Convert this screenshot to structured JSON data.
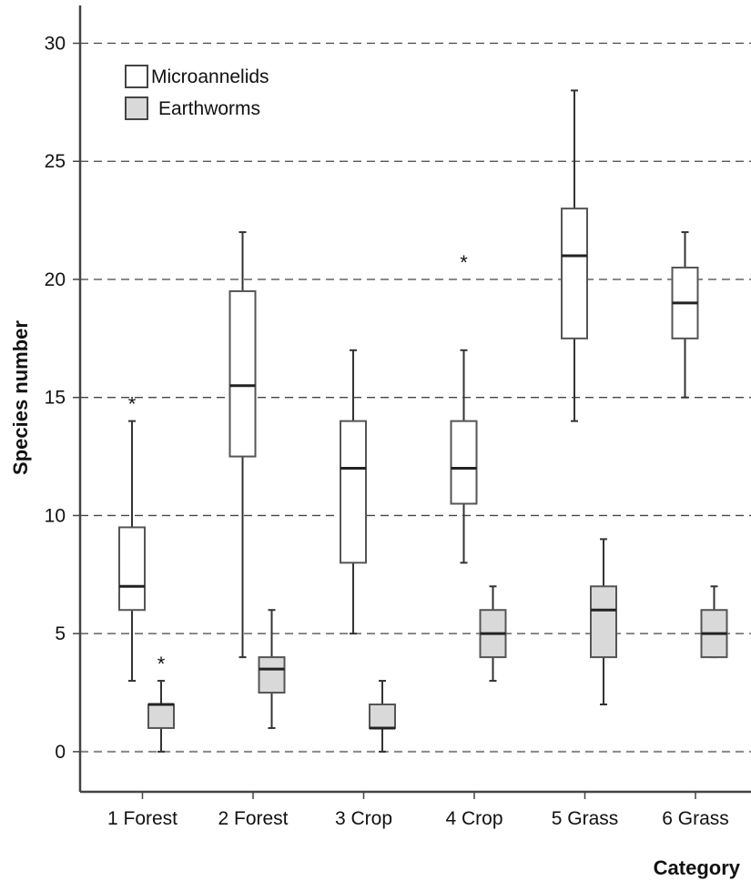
{
  "chart_data": {
    "type": "boxplot",
    "xlabel": "Category",
    "ylabel": "Species number",
    "ylim": [
      -1.7,
      31.6
    ],
    "yticks": [
      0,
      5,
      10,
      15,
      20,
      25,
      30
    ],
    "grid": "horizontal-dashed",
    "legend_position": "top-left",
    "categories": [
      "1 Forest",
      "2 Forest",
      "3 Crop",
      "4 Crop",
      "5 Grass",
      "6 Grass"
    ],
    "series": [
      {
        "name": "Microannelids",
        "fill": "#ffffff",
        "boxes": [
          {
            "min": 3,
            "q1": 6,
            "median": 7,
            "q3": 9.5,
            "max": 14,
            "outliers": [
              15
            ]
          },
          {
            "min": 4,
            "q1": 12.5,
            "median": 15.5,
            "q3": 19.5,
            "max": 22,
            "outliers": []
          },
          {
            "min": 5,
            "q1": 8,
            "median": 12,
            "q3": 14,
            "max": 17,
            "outliers": []
          },
          {
            "min": 8,
            "q1": 10.5,
            "median": 12,
            "q3": 14,
            "max": 17,
            "outliers": [
              21
            ]
          },
          {
            "min": 14,
            "q1": 17.5,
            "median": 21,
            "q3": 23,
            "max": 28,
            "outliers": []
          },
          {
            "min": 15,
            "q1": 17.5,
            "median": 19,
            "q3": 20.5,
            "max": 22,
            "outliers": []
          }
        ]
      },
      {
        "name": "Earthworms",
        "fill": "#d9d9d9",
        "boxes": [
          {
            "min": 0,
            "q1": 1,
            "median": 2,
            "q3": 2,
            "max": 3,
            "outliers": [
              4
            ]
          },
          {
            "min": 1,
            "q1": 2.5,
            "median": 3.5,
            "q3": 4,
            "max": 6,
            "outliers": []
          },
          {
            "min": 0,
            "q1": 1,
            "median": 1,
            "q3": 2,
            "max": 3,
            "outliers": []
          },
          {
            "min": 3,
            "q1": 4,
            "median": 5,
            "q3": 6,
            "max": 7,
            "outliers": []
          },
          {
            "min": 2,
            "q1": 4,
            "median": 6,
            "q3": 7,
            "max": 9,
            "outliers": []
          },
          {
            "min": 4,
            "q1": 4,
            "median": 5,
            "q3": 6,
            "max": 7,
            "outliers": []
          }
        ]
      }
    ]
  }
}
